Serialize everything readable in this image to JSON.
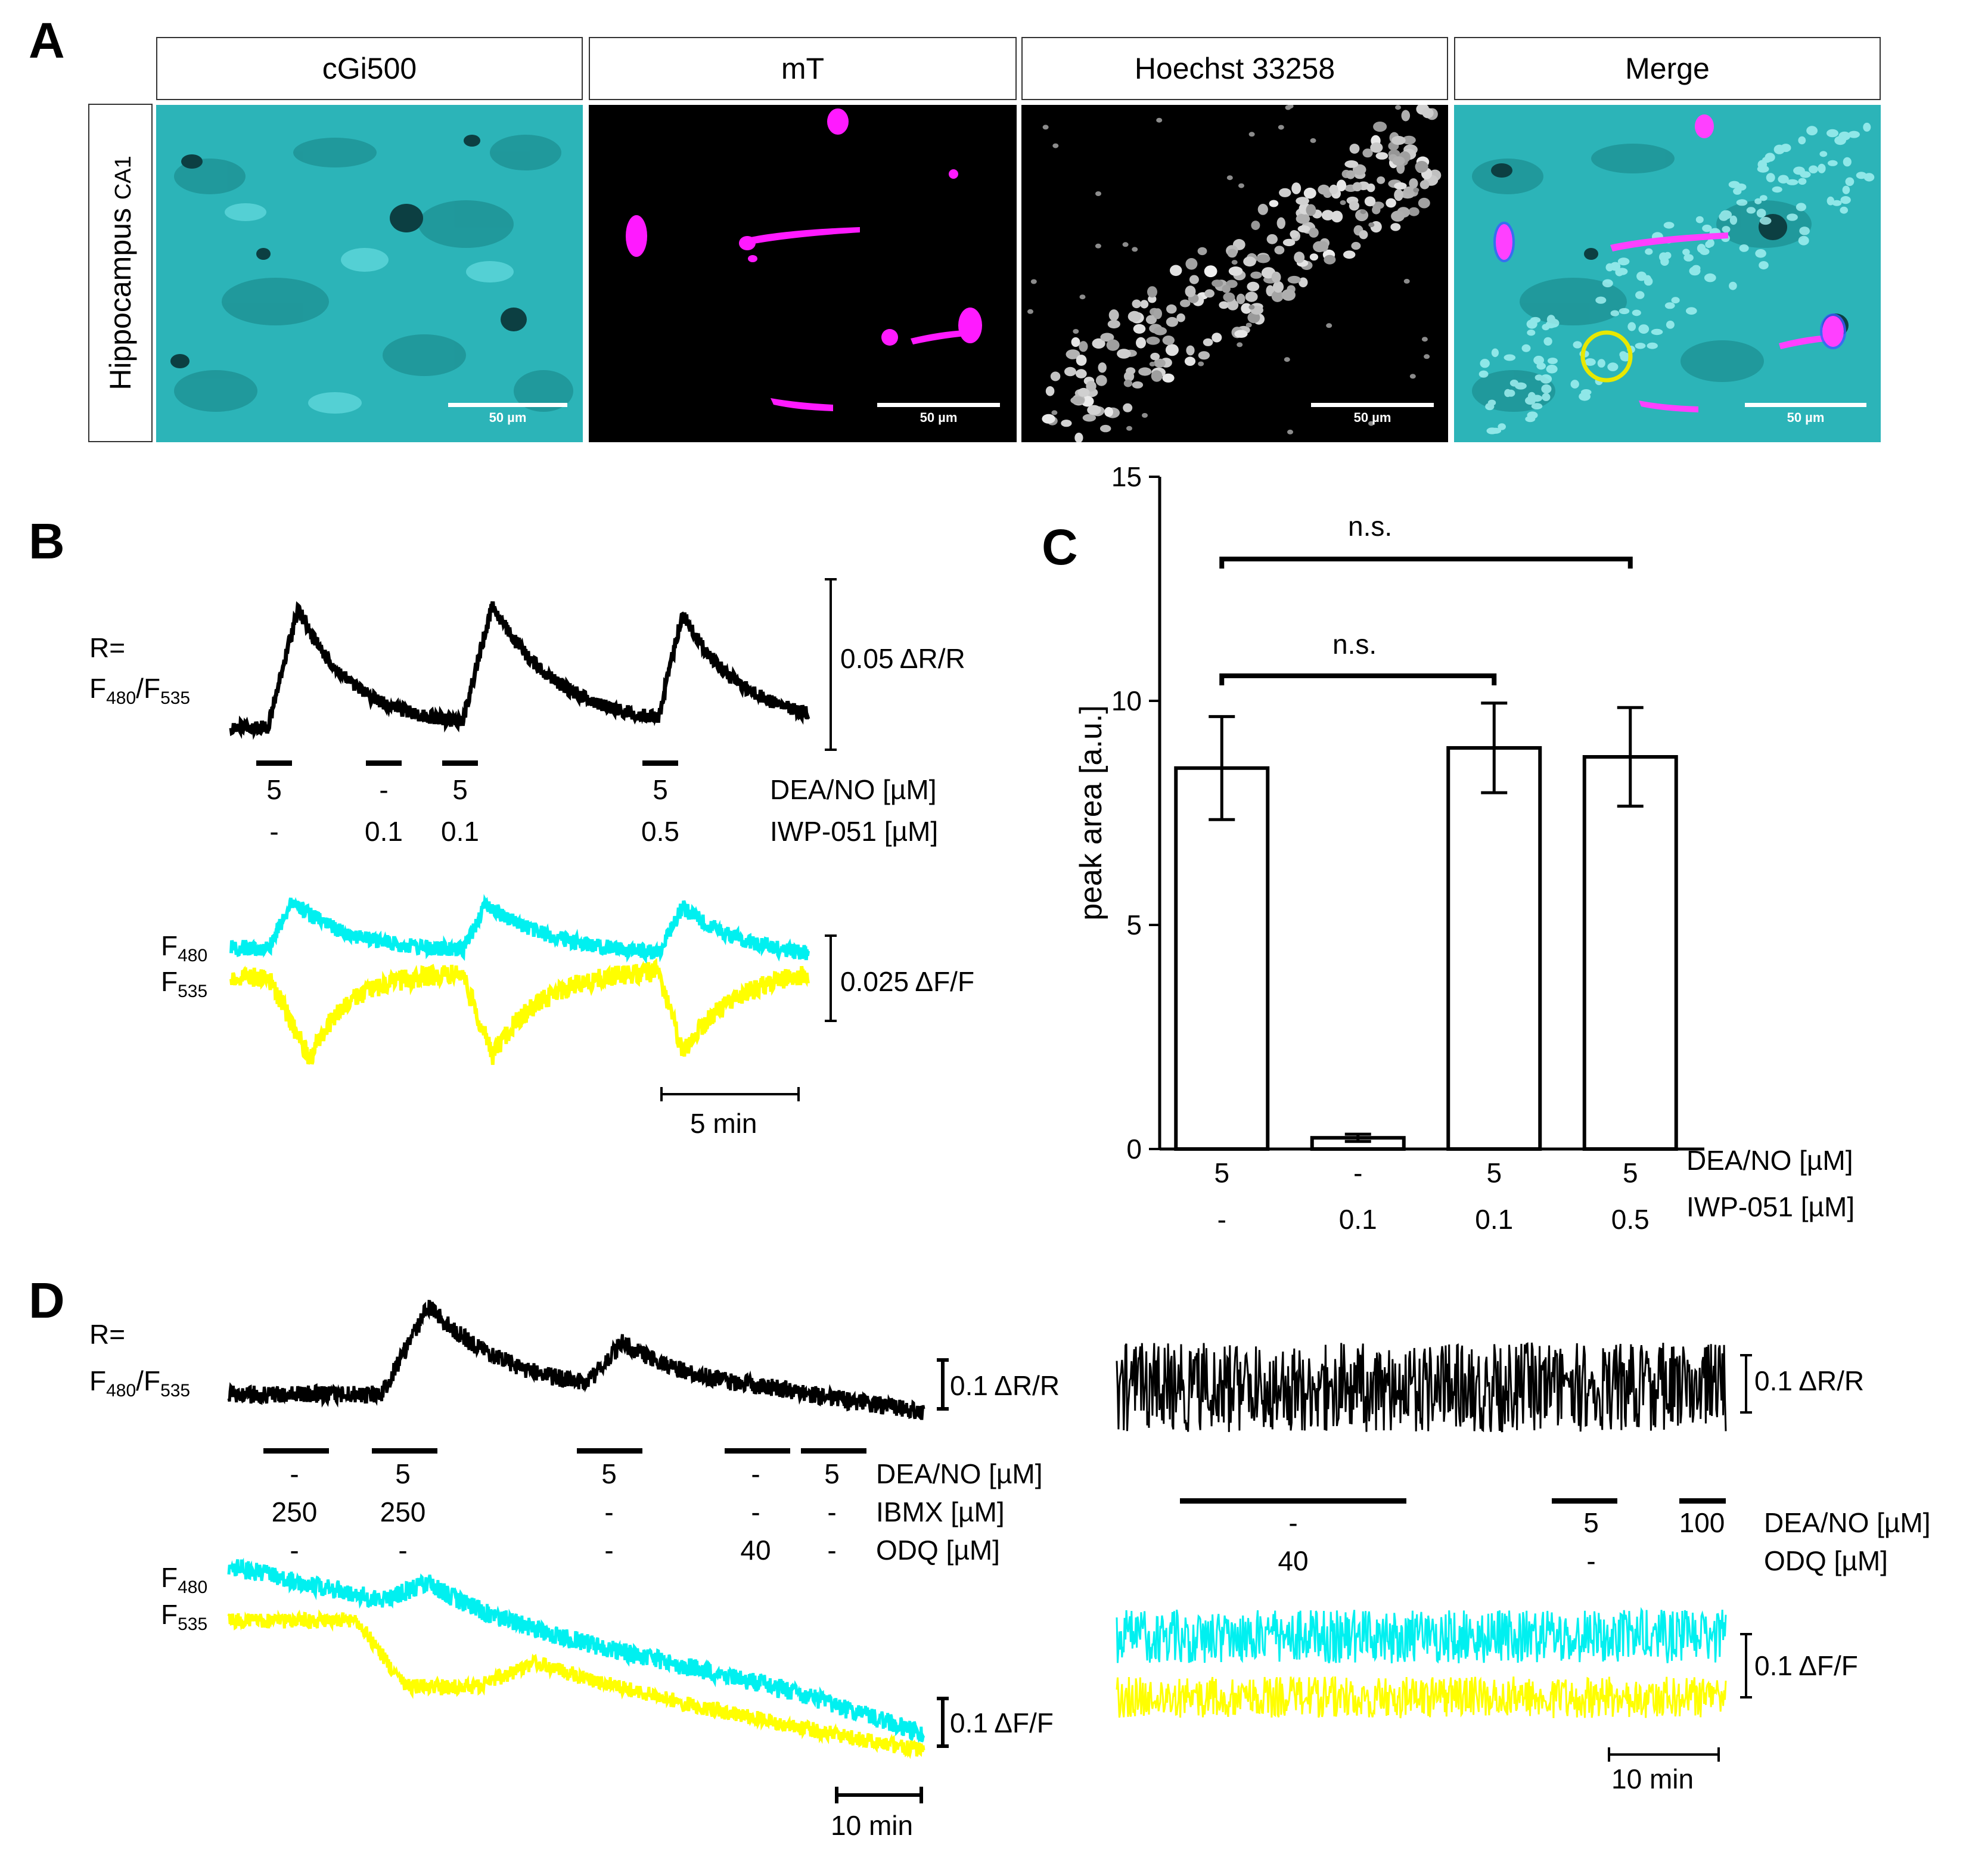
{
  "panel_a": {
    "letter": "A",
    "row_label": "Hippocampus",
    "row_sublabel": "CA1",
    "headers": [
      "cGi500",
      "mT",
      "Hoechst 33258",
      "Merge"
    ],
    "scale_bar_label": "50 µm"
  },
  "panel_b": {
    "letter": "B",
    "ratio_label_line1": "R=",
    "ratio_label_line2": "F480/F535",
    "ratio_scale": "0.05 ΔR/R",
    "fluor_scale": "0.025 ΔF/F",
    "f480_label": "F480",
    "f535_label": "F535",
    "time_scale": "5 min",
    "row1_label": "DEA/NO [µM]",
    "row2_label": "IWP-051 [µM]",
    "row1_values": [
      "5",
      "-",
      "5",
      "5"
    ],
    "row2_values": [
      "-",
      "0.1",
      "0.1",
      "0.5"
    ]
  },
  "panel_c": {
    "letter": "C",
    "row1_label": "DEA/NO [µM]",
    "row2_label": "IWP-051 [µM]",
    "sig_upper": "n.s.",
    "sig_lower": "n.s."
  },
  "chart_data": {
    "type": "bar",
    "ylabel": "peak area [a.u.]",
    "ylim": [
      0,
      15
    ],
    "yticks": [
      0,
      5,
      10,
      15
    ],
    "categories": [
      {
        "dea_no": "5",
        "iwp051": "-"
      },
      {
        "dea_no": "-",
        "iwp051": "0.1"
      },
      {
        "dea_no": "5",
        "iwp051": "0.1"
      },
      {
        "dea_no": "5",
        "iwp051": "0.5"
      }
    ],
    "values": [
      8.5,
      0.25,
      8.95,
      8.75
    ],
    "errors": [
      1.15,
      0.08,
      1.0,
      1.1
    ],
    "significance": [
      {
        "from": 0,
        "to": 2,
        "label": "n.s."
      },
      {
        "from": 0,
        "to": 3,
        "label": "n.s."
      }
    ]
  },
  "panel_d": {
    "letter": "D",
    "left": {
      "ratio_label_line1": "R=",
      "ratio_label_line2": "F480/F535",
      "ratio_scale": "0.1 ΔR/R",
      "fluor_scale": "0.1 ΔF/F",
      "f480_label": "F480",
      "f535_label": "F535",
      "time_scale": "10 min",
      "row1_label": "DEA/NO [µM]",
      "row2_label": "IBMX [µM]",
      "row3_label": "ODQ [µM]",
      "row1_values": [
        "-",
        "5",
        "5",
        "-",
        "5"
      ],
      "row2_values": [
        "250",
        "250",
        "-",
        "-",
        "-"
      ],
      "row3_values": [
        "-",
        "-",
        "-",
        "40",
        "-"
      ]
    },
    "right": {
      "ratio_scale": "0.1 ΔR/R",
      "fluor_scale": "0.1 ΔF/F",
      "time_scale": "10 min",
      "row1_label": "DEA/NO [µM]",
      "row2_label": "ODQ [µM]",
      "row1_values": [
        "-",
        "5",
        "100"
      ],
      "row2_values": [
        "40",
        "-"
      ]
    }
  },
  "colors": {
    "cyan": "#00f0f0",
    "yellow": "#ffff00",
    "magenta": "#ff00ff",
    "ring": "#e8e800"
  }
}
